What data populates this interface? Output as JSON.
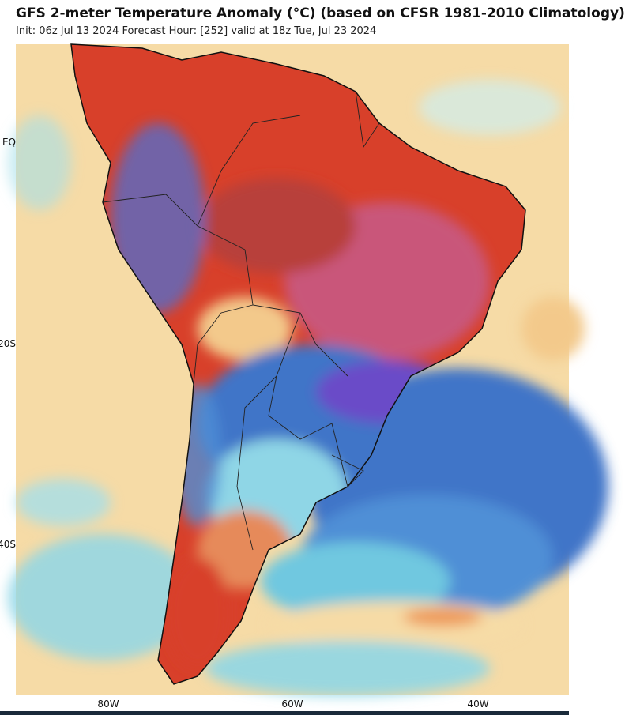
{
  "header": {
    "title": "GFS 2-meter Temperature Anomaly (°C) (based on CFSR 1981-2010 Climatology)",
    "subtitle": "Init: 06z Jul 13 2024   Forecast Hour: [252]   valid at 18z Tue, Jul 23 2024"
  },
  "map": {
    "region": "South America",
    "lat_labels": [
      "EQ",
      "20S",
      "40S"
    ],
    "lon_labels": [
      "80W",
      "60W",
      "40W"
    ],
    "colors": {
      "ocean_neutral": "#f6dba6",
      "warm_strong": "#d8402a",
      "warm_extreme": "#c9577a",
      "cold": "#3f74c8",
      "cold_strong": "#6a4cc8",
      "cool_light": "#8fd6e6",
      "coast": "#111111"
    }
  }
}
